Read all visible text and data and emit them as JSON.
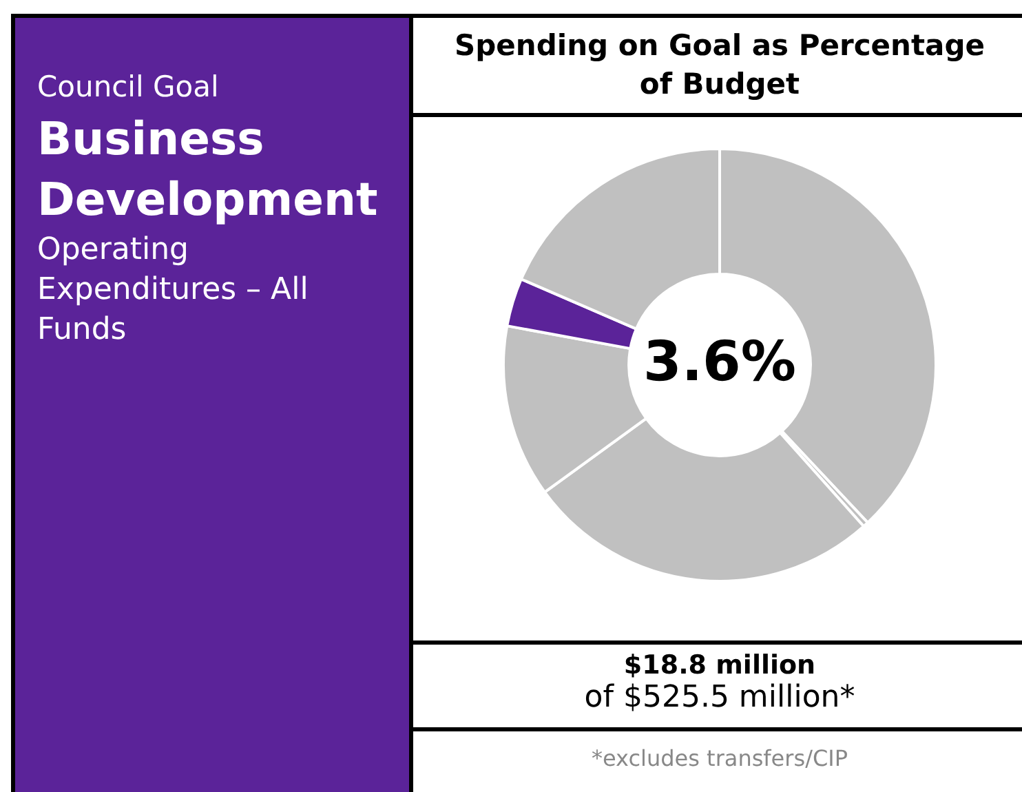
{
  "chart_data": {
    "type": "donut",
    "title": "Spending on Goal as Percentage of Budget",
    "categories": [
      null,
      null,
      null,
      null,
      null,
      null
    ],
    "values": [
      38,
      0.4,
      26.6,
      12.9,
      3.6,
      18.5
    ],
    "colors": [
      "#c0c0c0",
      "#c0c0c0",
      "#c0c0c0",
      "#c0c0c0",
      "#5b2399",
      "#c0c0c0"
    ],
    "legend": false,
    "annotations": [
      "Council Goal",
      "Business Development",
      "Operating Expenditures – All Funds",
      "3.6%",
      "$18.8 million",
      "of $525.5 million*",
      "*excludes transfers/CIP"
    ]
  }
}
